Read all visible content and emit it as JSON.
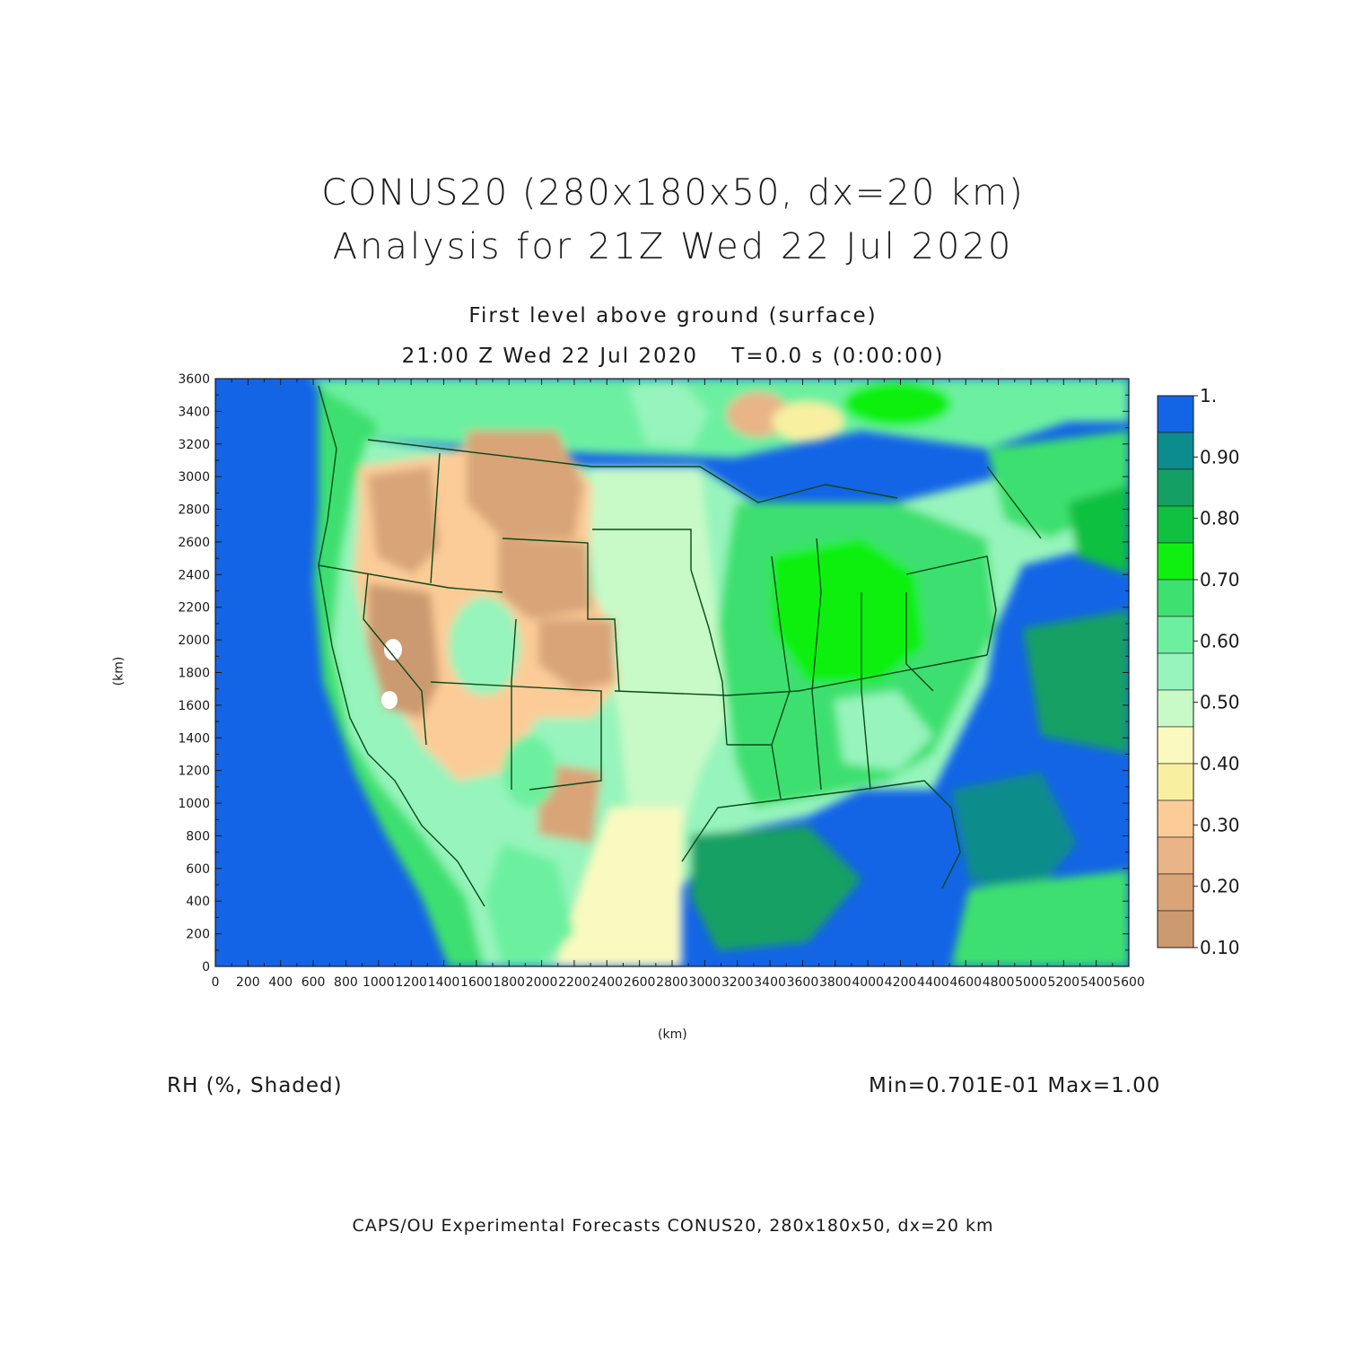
{
  "title": {
    "line1": "CONUS20 (280x180x50, dx=20 km)",
    "line2": "Analysis for 21Z Wed 22 Jul 2020"
  },
  "subtitle": {
    "level": "First level above ground (surface)",
    "time": "21:00 Z Wed 22 Jul 2020    T=0.0 s (0:00:00)"
  },
  "axes": {
    "x_unit": "(km)",
    "y_unit": "(km)",
    "x_ticks": [
      "0",
      "200",
      "400",
      "600",
      "800",
      "1000",
      "1200",
      "1400",
      "1600",
      "1800",
      "2000",
      "2200",
      "2400",
      "2600",
      "2800",
      "3000",
      "3200",
      "3400",
      "3600",
      "3800",
      "4000",
      "4200",
      "4400",
      "4600",
      "4800",
      "5000",
      "5200",
      "5400",
      "5600"
    ],
    "y_ticks": [
      "0",
      "200",
      "400",
      "600",
      "800",
      "1000",
      "1200",
      "1400",
      "1600",
      "1800",
      "2000",
      "2200",
      "2400",
      "2600",
      "2800",
      "3000",
      "3200",
      "3400",
      "3600"
    ],
    "x_range": [
      0,
      5600
    ],
    "y_range": [
      0,
      3600
    ]
  },
  "colorbar": {
    "labels": [
      "1.",
      "0.90",
      "0.80",
      "0.70",
      "0.60",
      "0.50",
      "0.40",
      "0.30",
      "0.20",
      "0.10"
    ],
    "colors": [
      "#1464e6",
      "#0c8c8c",
      "#14a064",
      "#10c040",
      "#10f010",
      "#3ee070",
      "#6cf0a0",
      "#96f4bc",
      "#c8fac8",
      "#fafac0",
      "#f8f0a0",
      "#fccc98",
      "#e8b488",
      "#d8a478",
      "#cc9a70"
    ]
  },
  "field_label": "RH (%, Shaded)",
  "min_max": "Min=0.701E-01 Max=1.00",
  "footer": "CAPS/OU Experimental Forecasts  CONUS20, 280x180x50, dx=20 km"
}
